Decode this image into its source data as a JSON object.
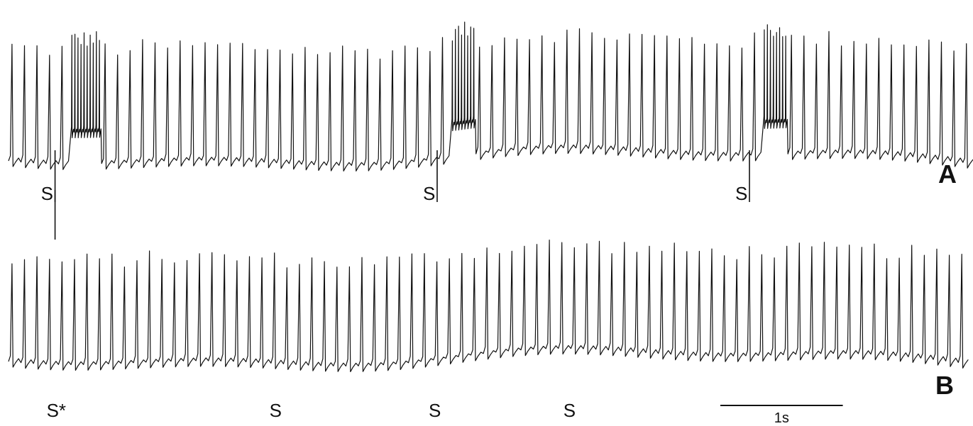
{
  "chart_data": {
    "type": "line",
    "title": "",
    "xlabel": "",
    "ylabel": "",
    "grid": false,
    "x_unit": "s",
    "duration_s": 7.8,
    "scale_bar": {
      "length_s": 1,
      "label": "1s"
    },
    "panels": [
      {
        "label": "A",
        "spike_rate_hz_baseline": 9.8,
        "spike_rate_hz_burst": 40,
        "stimuli": [
          {
            "label": "S",
            "t": 0.38
          },
          {
            "label": "S",
            "t": 3.5
          },
          {
            "label": "S",
            "t": 6.05
          }
        ],
        "bursts": [
          {
            "t_start": 0.5,
            "t_end": 0.75
          },
          {
            "t_start": 3.6,
            "t_end": 3.8
          },
          {
            "t_start": 6.15,
            "t_end": 6.35
          }
        ]
      },
      {
        "label": "B",
        "spike_rate_hz_baseline": 9.8,
        "stimuli": [
          {
            "label": "S*",
            "t": 0.38
          },
          {
            "label": "S",
            "t": 2.2
          },
          {
            "label": "S",
            "t": 3.5
          },
          {
            "label": "S",
            "t": 4.6
          }
        ],
        "bursts": []
      }
    ]
  }
}
